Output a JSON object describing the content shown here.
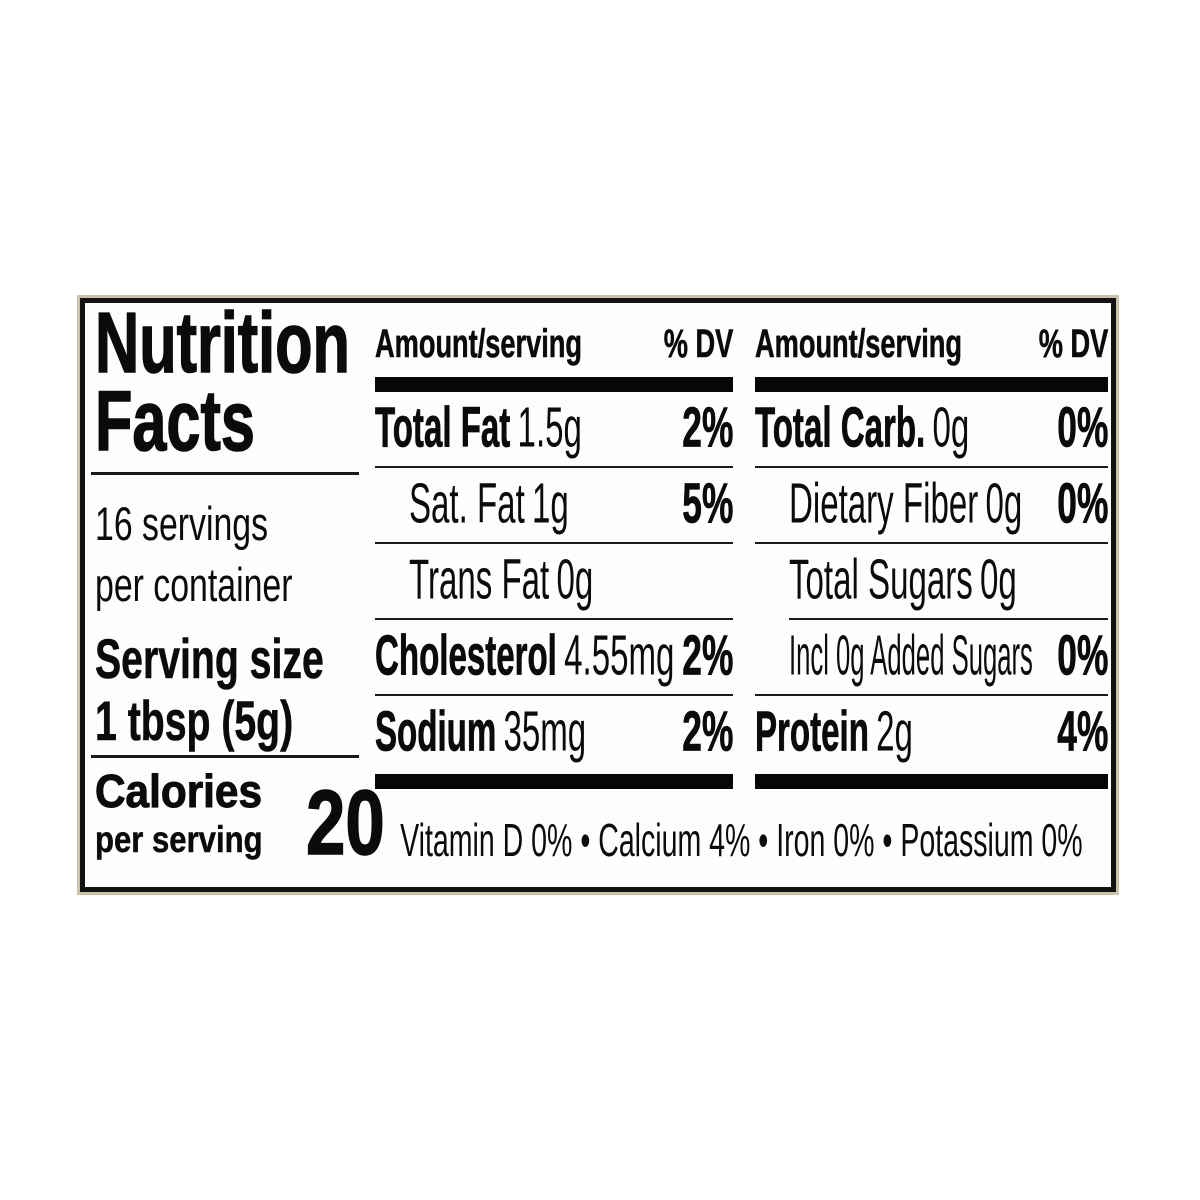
{
  "nutrition_label": {
    "title_line1": "Nutrition",
    "title_line2": "Facts",
    "servings_line1": "16 servings",
    "servings_line2": "per container",
    "serving_size_label": "Serving size",
    "serving_size_value": "1 tbsp (5g)",
    "calories_label": "Calories",
    "calories_sublabel": "per serving",
    "calories_value": "20",
    "column_header": {
      "amount": "Amount/serving",
      "dv": "% DV"
    },
    "columns": [
      {
        "rows": [
          {
            "name": "Total Fat",
            "value": "1.5g",
            "dv": "2%",
            "emphasis": "bold",
            "indent": 0
          },
          {
            "name": "Sat. Fat",
            "value": "1g",
            "dv": "5%",
            "emphasis": "regular",
            "indent": 1
          },
          {
            "name": "Trans Fat",
            "value": "0g",
            "dv": "",
            "emphasis": "regular",
            "indent": 1
          },
          {
            "name": "Cholesterol",
            "value": "4.55mg",
            "dv": "2%",
            "emphasis": "bold",
            "indent": 0
          },
          {
            "name": "Sodium",
            "value": "35mg",
            "dv": "2%",
            "emphasis": "bold",
            "indent": 0
          }
        ]
      },
      {
        "rows": [
          {
            "name": "Total Carb.",
            "value": "0g",
            "dv": "0%",
            "emphasis": "bold",
            "indent": 0
          },
          {
            "name": "Dietary Fiber",
            "value": "0g",
            "dv": "0%",
            "emphasis": "regular",
            "indent": 1
          },
          {
            "name": "Total Sugars",
            "value": "0g",
            "dv": "",
            "emphasis": "regular",
            "indent": 1,
            "divider_after_indented": true
          },
          {
            "name": "Incl 0g Added Sugars",
            "value": "",
            "dv": "0%",
            "emphasis": "regular",
            "indent": 1
          },
          {
            "name": "Protein",
            "value": "2g",
            "dv": "4%",
            "emphasis": "bold",
            "indent": 0
          }
        ]
      }
    ],
    "micronutrients_line": "Vitamin D 0% • Calcium 4% • Iron 0% • Potassium 0%",
    "colors": {
      "text": "#0b0b0b",
      "paper": "#ffffff",
      "rule": "#1a1a1a",
      "scan_edge": "#cbc2ab"
    }
  }
}
